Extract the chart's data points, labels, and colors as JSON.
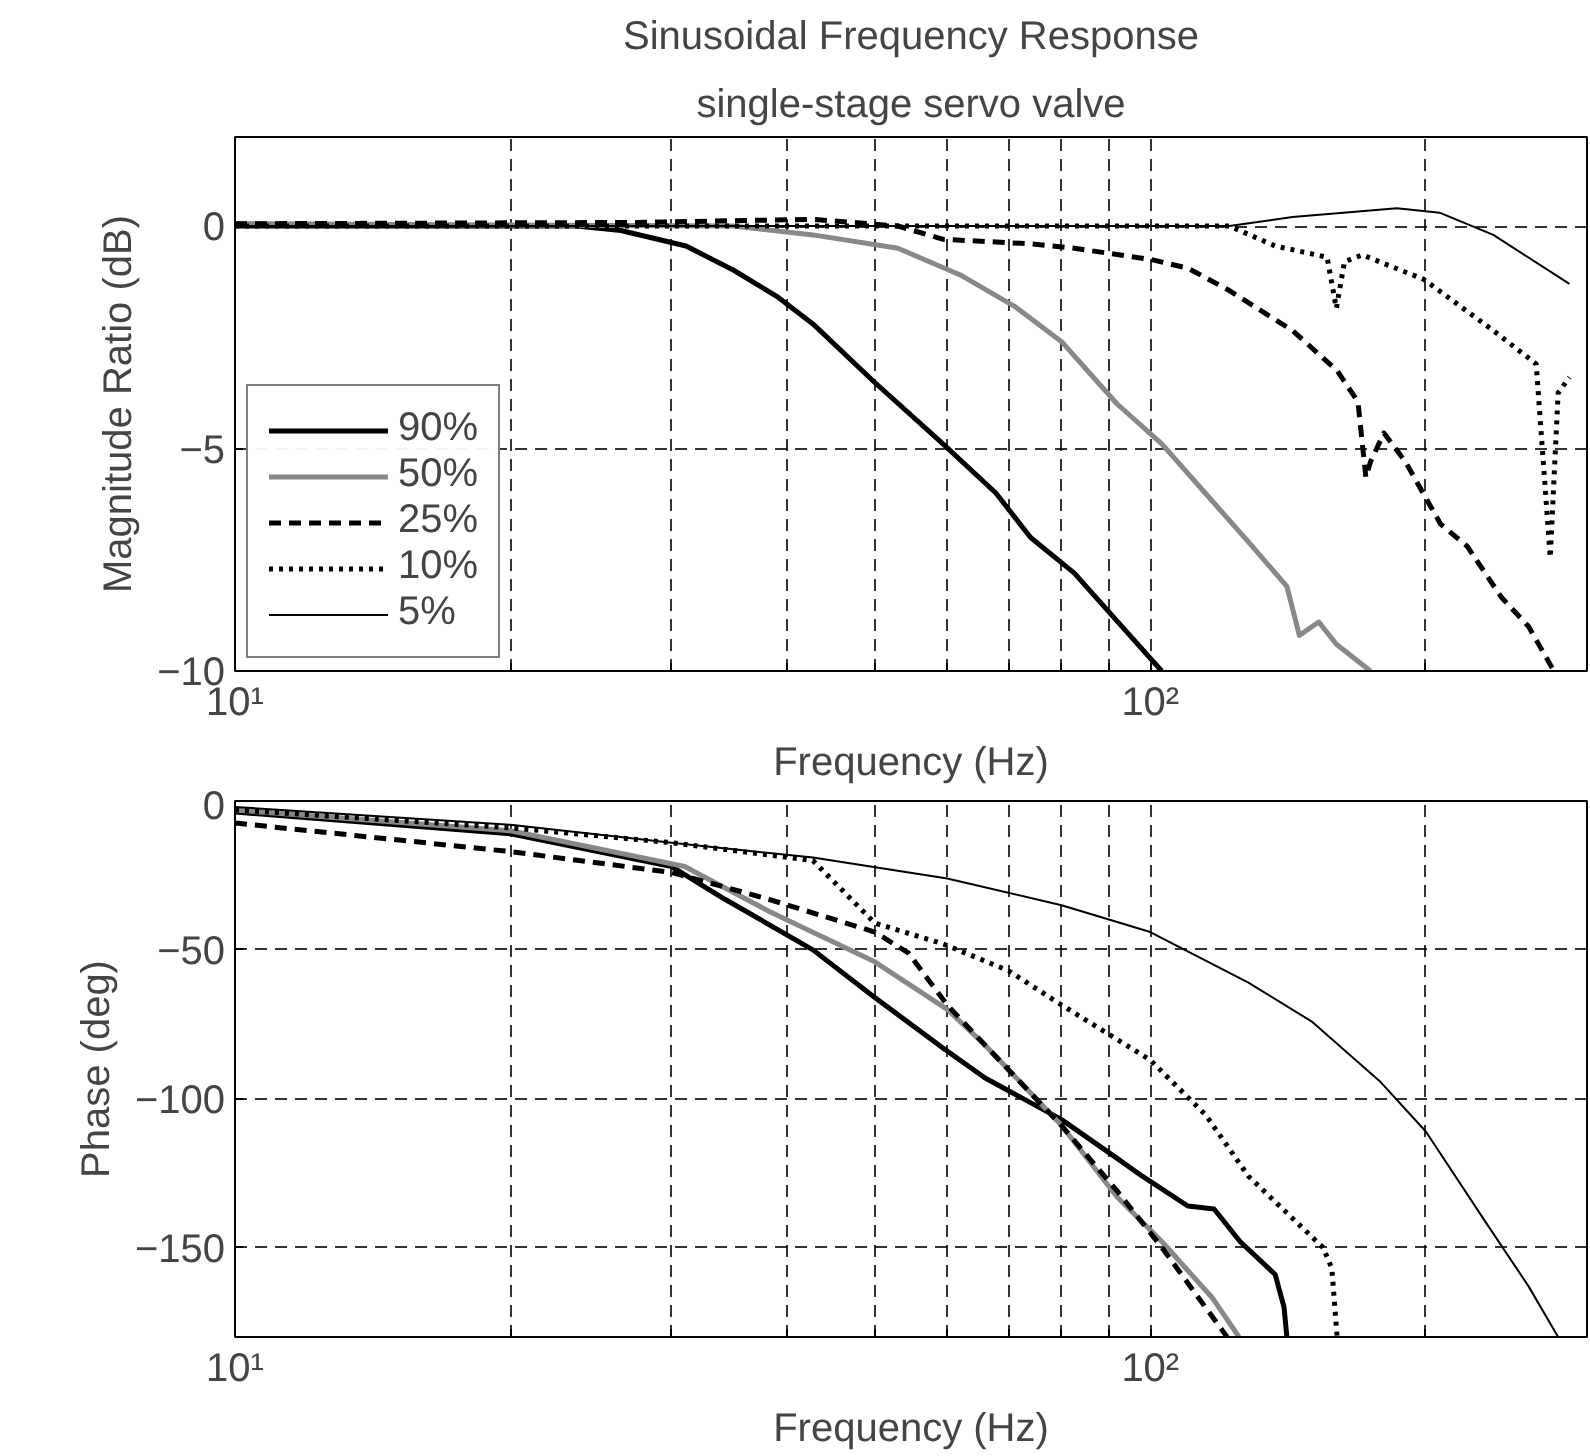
{
  "chart_data": [
    {
      "type": "line",
      "title": "Sinusoidal Frequency Response",
      "subtitle": "single-stage servo valve",
      "xlabel": "Frequency (Hz)",
      "ylabel": "Magnitude Ratio (dB)",
      "log": "x",
      "grid": true,
      "legend": "bottom left",
      "marker": "none",
      "xlim": [
        10,
        300
      ],
      "ylim": [
        -10,
        2
      ],
      "yticks": [
        -10,
        -5,
        0
      ],
      "xticks": [
        {
          "value": 10,
          "label": "10¹"
        },
        {
          "value": 20,
          "label": null
        },
        {
          "value": 30,
          "label": null
        },
        {
          "value": 40,
          "label": null
        },
        {
          "value": 50,
          "label": null
        },
        {
          "value": 60,
          "label": null
        },
        {
          "value": 70,
          "label": null
        },
        {
          "value": 80,
          "label": null
        },
        {
          "value": 90,
          "label": null
        },
        {
          "value": 100,
          "label": "10²"
        },
        {
          "value": 200,
          "label": null
        }
      ],
      "series": [
        {
          "name": "90%",
          "color": "#000000",
          "line_style": "solid",
          "x": [
            10,
            23.6,
            26.4,
            31.1,
            35.1,
            39.2,
            42.8,
            49.9,
            59.4,
            67.8,
            74,
            82.6,
            92.2,
            102.9
          ],
          "values": [
            0,
            0,
            -0.1,
            -0.45,
            -1.0,
            -1.6,
            -2.2,
            -3.5,
            -4.9,
            -6.0,
            -7.0,
            -7.8,
            -8.9,
            -10
          ]
        },
        {
          "name": "50%",
          "color": "#888888",
          "line_style": "solid",
          "x": [
            10,
            35,
            42.8,
            53,
            62,
            71,
            80,
            92,
            103,
            114.8,
            128,
            141,
            145.5,
            152.8,
            159.7,
            174
          ],
          "values": [
            0.05,
            0,
            -0.2,
            -0.5,
            -1.1,
            -1.8,
            -2.6,
            -4.0,
            -4.9,
            -6.0,
            -7.1,
            -8.1,
            -9.2,
            -8.9,
            -9.4,
            -10
          ]
        },
        {
          "name": "25%",
          "color": "#000000",
          "line_style": "dashed",
          "x": [
            10,
            27.5,
            42.8,
            53,
            59.4,
            74,
            82.6,
            100,
            110,
            122,
            143,
            160,
            168.6,
            172,
            174,
            180,
            190,
            207.6,
            222,
            242,
            259,
            276
          ],
          "values": [
            0.05,
            0.08,
            0.15,
            0,
            -0.3,
            -0.4,
            -0.5,
            -0.75,
            -0.95,
            -1.45,
            -2.35,
            -3.25,
            -3.95,
            -5.65,
            -5.3,
            -4.65,
            -5.3,
            -6.7,
            -7.2,
            -8.35,
            -9.0,
            -10
          ]
        },
        {
          "name": "10%",
          "color": "#000000",
          "line_style": "dotted",
          "x": [
            10,
            50,
            122,
            136.9,
            156,
            159.7,
            163,
            170.5,
            199,
            237,
            264,
            273.5,
            279,
            287
          ],
          "values": [
            0,
            0,
            0,
            -0.45,
            -0.7,
            -1.85,
            -0.8,
            -0.65,
            -1.2,
            -2.35,
            -3.1,
            -7.45,
            -3.75,
            -3.4
          ]
        },
        {
          "name": "5%",
          "color": "#000000",
          "line_style": "solid",
          "x": [
            10,
            50,
            122,
            143,
            186,
            207,
            237,
            287
          ],
          "values": [
            0,
            0,
            0,
            0.2,
            0.4,
            0.3,
            -0.2,
            -1.3
          ]
        }
      ]
    },
    {
      "type": "line",
      "xlabel": "Frequency (Hz)",
      "ylabel": "Phase (deg)",
      "log": "x",
      "grid": true,
      "marker": "none",
      "xlim": [
        10,
        300
      ],
      "ylim": [
        -180,
        0
      ],
      "yticks": [
        -150,
        -100,
        -50,
        0
      ],
      "xticks": [
        {
          "value": 10,
          "label": "10¹"
        },
        {
          "value": 20,
          "label": null
        },
        {
          "value": 30,
          "label": null
        },
        {
          "value": 40,
          "label": null
        },
        {
          "value": 50,
          "label": null
        },
        {
          "value": 60,
          "label": null
        },
        {
          "value": 70,
          "label": null
        },
        {
          "value": 80,
          "label": null
        },
        {
          "value": 90,
          "label": null
        },
        {
          "value": 100,
          "label": "10²"
        },
        {
          "value": 200,
          "label": null
        }
      ],
      "series": [
        {
          "color": "#000000",
          "line_style": "solid",
          "x": [
            10,
            20,
            30,
            34.3,
            42.8,
            50,
            59.4,
            66,
            80,
            92,
            98,
            109.9,
            117.4,
            125.4,
            136.9,
            140,
            141
          ],
          "values": [
            -3.7,
            -11,
            -22,
            -33,
            -50,
            -66,
            -83,
            -93,
            -107,
            -120,
            -126,
            -136,
            -137,
            -148,
            -159,
            -170,
            -180
          ]
        },
        {
          "color": "#888888",
          "line_style": "solid",
          "x": [
            10,
            20,
            31,
            38.3,
            50,
            60,
            66,
            80,
            92,
            103,
            117,
            125
          ],
          "values": [
            -3,
            -10,
            -22,
            -37,
            -54,
            -70,
            -82,
            -109,
            -133,
            -148,
            -167,
            -180
          ]
        },
        {
          "color": "#000000",
          "line_style": "dashed",
          "x": [
            10,
            20,
            30,
            38.3,
            50,
            54.4,
            60,
            66,
            80,
            92,
            103,
            121.3
          ],
          "values": [
            -7.4,
            -17,
            -24,
            -33,
            -44,
            -51,
            -68.5,
            -82,
            -109,
            -131,
            -150,
            -180
          ]
        },
        {
          "color": "#000000",
          "line_style": "dotted",
          "x": [
            10,
            20,
            30,
            42.8,
            50,
            59.4,
            70,
            80,
            100,
            115,
            128,
            154.5,
            157.9,
            160
          ],
          "values": [
            -3,
            -9,
            -14,
            -20,
            -41,
            -48,
            -57,
            -68.5,
            -87,
            -105.5,
            -126,
            -150,
            -157,
            -180
          ]
        },
        {
          "color": "#000000",
          "line_style": "solid",
          "x": [
            10,
            20,
            30,
            42.8,
            60,
            80,
            100,
            128,
            150,
            178,
            200,
            232,
            259,
            279
          ],
          "values": [
            -2,
            -8,
            -14,
            -19,
            -26,
            -35,
            -44,
            -61,
            -74,
            -94,
            -111,
            -141,
            -163,
            -180
          ]
        }
      ]
    }
  ]
}
